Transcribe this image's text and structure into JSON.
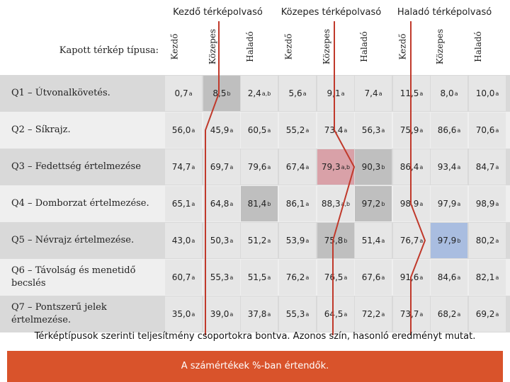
{
  "header": {
    "row_label": "Kapott térkép típusa:",
    "groups": [
      "Kezdő térképolvasó",
      "Közepes térképolvasó",
      "Haladó térképolvasó"
    ],
    "sub_columns": [
      "Kezdő",
      "Közepes",
      "Haladó",
      "Kezdő",
      "Közepes",
      "Haladó",
      "Kezdő",
      "Közepes",
      "Haladó"
    ]
  },
  "colors": {
    "row_band_dark": "#d9d9d9",
    "row_band_light": "#efefef",
    "cell_light": "#e6e6e6",
    "cell_mid": "#bfbfbf",
    "cell_dark": "#a6a6a6",
    "cell_pink": "#d9a1a8",
    "cell_blue": "#a9bde0",
    "line": "#c0392b",
    "footer": "#d9532b"
  },
  "chart_data": {
    "type": "table",
    "questions": [
      "Q1 – Útvonalkövetés.",
      "Q2 – Síkrajz.",
      "Q3 – Fedettség értelmezése",
      "Q4 – Domborzat értelmezése.",
      "Q5 – Névrajz értelmezése.",
      "Q6 – Távolság és menetidő becslés",
      "Q7 – Pontszerű jelek értelmezése."
    ],
    "rows": [
      [
        [
          "0,7",
          "a"
        ],
        [
          "8,5",
          "b"
        ],
        [
          "2,4",
          "a,b"
        ],
        [
          "5,6",
          "a"
        ],
        [
          "9,1",
          "a"
        ],
        [
          "7,4",
          "a"
        ],
        [
          "11,5",
          "a"
        ],
        [
          "8,0",
          "a"
        ],
        [
          "10,0",
          "a"
        ]
      ],
      [
        [
          "56,0",
          "a"
        ],
        [
          "45,9",
          "a"
        ],
        [
          "60,5",
          "a"
        ],
        [
          "55,2",
          "a"
        ],
        [
          "73,4",
          "a"
        ],
        [
          "56,3",
          "a"
        ],
        [
          "75,9",
          "a"
        ],
        [
          "86,6",
          "a"
        ],
        [
          "70,6",
          "a"
        ]
      ],
      [
        [
          "74,7",
          "a"
        ],
        [
          "69,7",
          "a"
        ],
        [
          "79,6",
          "a"
        ],
        [
          "67,4",
          "a"
        ],
        [
          "79,3",
          "a,b"
        ],
        [
          "90,3",
          "b"
        ],
        [
          "86,4",
          "a"
        ],
        [
          "93,4",
          "a"
        ],
        [
          "84,7",
          "a"
        ]
      ],
      [
        [
          "65,1",
          "a"
        ],
        [
          "64,8",
          "a"
        ],
        [
          "81,4",
          "b"
        ],
        [
          "86,1",
          "a"
        ],
        [
          "88,3",
          "a,b"
        ],
        [
          "97,2",
          "b"
        ],
        [
          "98,9",
          "a"
        ],
        [
          "97,9",
          "a"
        ],
        [
          "98,9",
          "a"
        ]
      ],
      [
        [
          "43,0",
          "a"
        ],
        [
          "50,3",
          "a"
        ],
        [
          "51,2",
          "a"
        ],
        [
          "53,9",
          "a"
        ],
        [
          "75,8",
          "b"
        ],
        [
          "51,4",
          "a"
        ],
        [
          "76,7",
          "a"
        ],
        [
          "97,9",
          "b"
        ],
        [
          "80,2",
          "a"
        ]
      ],
      [
        [
          "60,7",
          "a"
        ],
        [
          "55,3",
          "a"
        ],
        [
          "51,5",
          "a"
        ],
        [
          "76,2",
          "a"
        ],
        [
          "76,5",
          "a"
        ],
        [
          "67,6",
          "a"
        ],
        [
          "91,6",
          "a"
        ],
        [
          "84,6",
          "a"
        ],
        [
          "82,1",
          "a"
        ]
      ],
      [
        [
          "35,0",
          "a"
        ],
        [
          "39,0",
          "a"
        ],
        [
          "37,8",
          "a"
        ],
        [
          "55,3",
          "a"
        ],
        [
          "64,5",
          "a"
        ],
        [
          "72,2",
          "a"
        ],
        [
          "73,7",
          "a"
        ],
        [
          "68,2",
          "a"
        ],
        [
          "69,2",
          "a"
        ]
      ]
    ],
    "cell_shading": [
      [
        "light",
        "mid",
        "light",
        "light",
        "light",
        "light",
        "light",
        "light",
        "light"
      ],
      [
        "light",
        "light",
        "light",
        "light",
        "light",
        "light",
        "light",
        "light",
        "light"
      ],
      [
        "light",
        "light",
        "light",
        "light",
        "pink",
        "mid",
        "light",
        "light",
        "light"
      ],
      [
        "light",
        "light",
        "mid",
        "light",
        "light",
        "mid",
        "light",
        "light",
        "light"
      ],
      [
        "light",
        "light",
        "light",
        "light",
        "mid",
        "light",
        "light",
        "blue",
        "light"
      ],
      [
        "light",
        "light",
        "light",
        "light",
        "light",
        "light",
        "light",
        "light",
        "light"
      ],
      [
        "light",
        "light",
        "light",
        "light",
        "light",
        "light",
        "light",
        "light",
        "light"
      ]
    ],
    "note": "Azonos szín, hasonló eredményt mutat."
  },
  "caption": "Térképtípusok szerinti teljesítmény csoportokra bontva. Azonos szín, hasonló eredményt mutat.",
  "footer": "A számértékek %-ban értendők."
}
